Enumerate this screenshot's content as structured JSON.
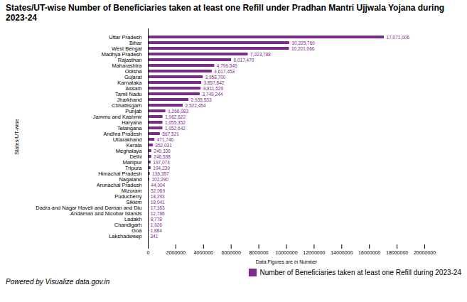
{
  "chart_data": {
    "type": "bar",
    "orientation": "horizontal",
    "title": "States/UT-wise Number of Beneficiaries taken at least one Refill under Pradhan Mantri Ujjwala Yojana during 2023-24",
    "xlabel": "Data Figures are in Number",
    "ylabel": "States/UT-wise",
    "annotations": [
      "Powered by Visualize data.gov.in"
    ],
    "categories": [
      "Uttar Pradesh",
      "Bihar",
      "West Bengal",
      "Madhya Pradesh",
      "Rajasthan",
      "Maharashtra",
      "Odisha",
      "Gujarat",
      "Karnataka",
      "Assam",
      "Tamil Nadu",
      "Jharkhand",
      "Chhattisgarh",
      "Punjab",
      "Jammu and Kashmir",
      "Haryana",
      "Telangana",
      "Andhra Pradesh",
      "Uttarakhand",
      "Kerala",
      "Meghalaya",
      "Delhi",
      "Manipur",
      "Tripura",
      "Himachal Pradesh",
      "Nagaland",
      "Arunachal Pradesh",
      "Mizoram",
      "Puducherry",
      "Sikkim",
      "Dadra and Nagar Haveli and Daman and Diu",
      "Andaman and Nicobar Islands",
      "Ladakh",
      "Chandigarh",
      "Goa",
      "Lakshadweep"
    ],
    "series": [
      {
        "name": "Number of Beneficiaries taken at least one Refill during 2023-24",
        "color": "#7B2D8B",
        "values": [
          17071006,
          10225760,
          10201066,
          7223788,
          6017470,
          4796545,
          4617453,
          3958700,
          3857842,
          3811529,
          3749244,
          2935533,
          2522454,
          1266083,
          1062622,
          1055352,
          1052642,
          867521,
          471746,
          352031,
          249336,
          246538,
          197074,
          194239,
          136357,
          102290,
          44004,
          32069,
          18293,
          18041,
          17363,
          12786,
          8778,
          1926,
          1884,
          341
        ],
        "value_labels": [
          "17,071,006",
          "10,225,760",
          "10,201,066",
          "7,223,788",
          "6,017,470",
          "4,796,545",
          "4,617,453",
          "3,958,700",
          "3,857,842",
          "3,811,529",
          "3,749,244",
          "2,935,533",
          "2,522,454",
          "1,266,083",
          "1,062,622",
          "1,055,352",
          "1,052,642",
          "867,521",
          "471,746",
          "352,031",
          "249,336",
          "246,538",
          "197,074",
          "194,239",
          "136,357",
          "102,290",
          "44,004",
          "32,069",
          "18,293",
          "18,041",
          "17,363",
          "12,786",
          "8,778",
          "1,926",
          "1,884",
          "341"
        ]
      }
    ],
    "data_labels": true,
    "legend": "lower right",
    "grid": false,
    "xlim": [
      0,
      20000000
    ],
    "xticks": [
      0,
      2000000,
      4000000,
      6000000,
      8000000,
      10000000,
      12000000,
      14000000,
      16000000,
      18000000,
      20000000
    ]
  }
}
